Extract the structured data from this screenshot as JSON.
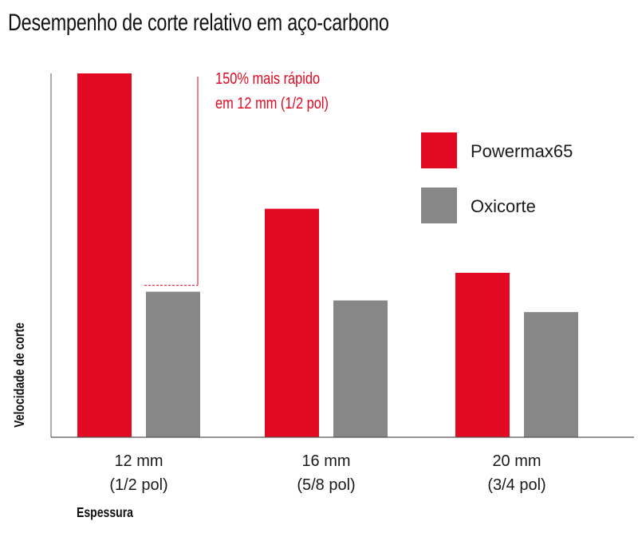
{
  "chart_data": {
    "type": "bar",
    "title": "Desempenho de corte relativo em aço-carbono",
    "xlabel": "Espessura",
    "ylabel": "Velocidade de corte",
    "categories": [
      [
        "12 mm",
        "(1/2 pol)"
      ],
      [
        "16 mm",
        "(5/8 pol)"
      ],
      [
        "20 mm",
        "(3/4 pol)"
      ]
    ],
    "series": [
      {
        "name": "Powermax65",
        "color": "#e20a22",
        "values": [
          2.5,
          1.57,
          1.13
        ]
      },
      {
        "name": "Oxicorte",
        "color": "#878787",
        "values": [
          1.0,
          0.94,
          0.86
        ]
      }
    ],
    "ylim": [
      0,
      2.5
    ],
    "grid": false,
    "legend": "top-right",
    "annotation": {
      "lines": [
        "150% mais rápido",
        "em 12 mm (1/2 pol)"
      ],
      "color": "#e20a22"
    }
  }
}
